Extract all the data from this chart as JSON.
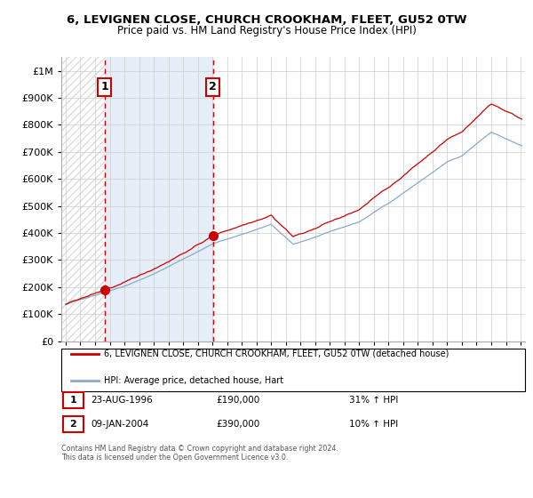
{
  "title": "6, LEVIGNEN CLOSE, CHURCH CROOKHAM, FLEET, GU52 0TW",
  "subtitle": "Price paid vs. HM Land Registry's House Price Index (HPI)",
  "sale1_date": 1996.65,
  "sale1_price": 190000,
  "sale1_label": "1",
  "sale1_note": "23-AUG-1996",
  "sale1_amount": "£190,000",
  "sale1_pct": "31% ↑ HPI",
  "sale2_date": 2004.03,
  "sale2_price": 390000,
  "sale2_label": "2",
  "sale2_note": "09-JAN-2004",
  "sale2_amount": "£390,000",
  "sale2_pct": "10% ↑ HPI",
  "legend_line1": "6, LEVIGNEN CLOSE, CHURCH CROOKHAM, FLEET, GU52 0TW (detached house)",
  "legend_line2": "HPI: Average price, detached house, Hart",
  "footer": "Contains HM Land Registry data © Crown copyright and database right 2024.\nThis data is licensed under the Open Government Licence v3.0.",
  "line_color_red": "#cc0000",
  "line_color_blue": "#88aacc",
  "hatch_region1_color": "#dddddd",
  "hatch_region2_color": "#ccddf0",
  "ylim": [
    0,
    1050000
  ],
  "xlim_start": 1993.7,
  "xlim_end": 2025.3,
  "yticks": [
    0,
    100000,
    200000,
    300000,
    400000,
    500000,
    600000,
    700000,
    800000,
    900000,
    1000000
  ],
  "ytick_labels": [
    "£0",
    "£100K",
    "£200K",
    "£300K",
    "£400K",
    "£500K",
    "£600K",
    "£700K",
    "£800K",
    "£900K",
    "£1M"
  ]
}
